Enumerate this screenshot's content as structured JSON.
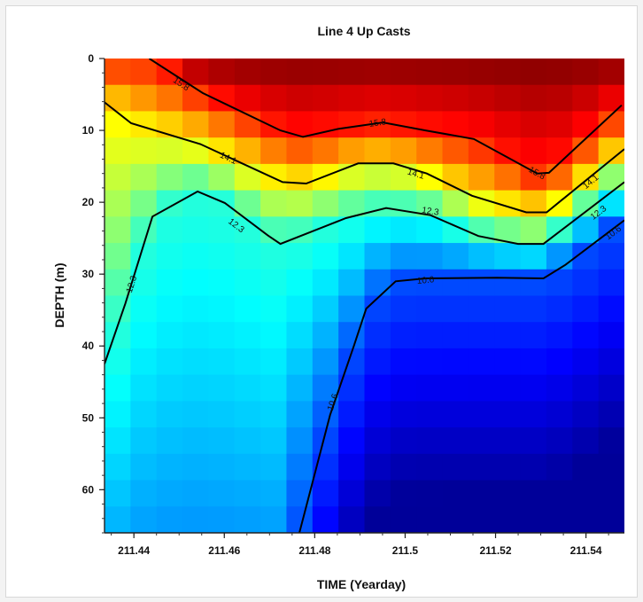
{
  "chart_data": {
    "type": "heatmap",
    "title": "Line 4 Up Casts",
    "xlabel": "TIME (Yearday)",
    "ylabel": "DEPTH (m)",
    "xlim": [
      211.4335,
      211.5485
    ],
    "ylim": [
      66,
      0
    ],
    "x_ticks": [
      "211.44",
      "211.46",
      "211.48",
      "211.5",
      "211.52",
      "211.54"
    ],
    "x_tick_values": [
      211.44,
      211.46,
      211.48,
      211.5,
      211.52,
      211.54
    ],
    "y_ticks": [
      "0",
      "10",
      "20",
      "30",
      "40",
      "50",
      "60"
    ],
    "y_tick_values": [
      0,
      10,
      20,
      30,
      40,
      50,
      60
    ],
    "colormap": "jet",
    "color_range": [
      9.0,
      17.0
    ],
    "contours": [
      {
        "label": "15.8",
        "value": 15.8,
        "points": [
          [
            211.4434,
            0.0
          ],
          [
            211.4552,
            4.8
          ],
          [
            211.4724,
            10.0
          ],
          [
            211.4774,
            10.9
          ],
          [
            211.4852,
            9.8
          ],
          [
            211.4951,
            8.9
          ],
          [
            211.5045,
            10.0
          ],
          [
            211.5152,
            11.2
          ],
          [
            211.5292,
            16.0
          ],
          [
            211.5318,
            15.9
          ],
          [
            211.5479,
            6.5
          ]
        ],
        "label_at": [
          [
            211.4505,
            3.5
          ],
          [
            211.4939,
            8.9
          ],
          [
            211.5292,
            15.9
          ]
        ]
      },
      {
        "label": "14.1",
        "value": 14.1,
        "points": [
          [
            211.4335,
            6.1
          ],
          [
            211.4394,
            9.0
          ],
          [
            211.4547,
            11.9
          ],
          [
            211.4729,
            17.2
          ],
          [
            211.4781,
            17.4
          ],
          [
            211.4896,
            14.6
          ],
          [
            211.4974,
            14.6
          ],
          [
            211.5048,
            16.0
          ],
          [
            211.5148,
            19.1
          ],
          [
            211.5268,
            21.4
          ],
          [
            211.5313,
            21.4
          ],
          [
            211.5485,
            12.6
          ]
        ],
        "label_at": [
          [
            211.4609,
            13.8
          ],
          [
            211.5024,
            16.0
          ],
          [
            211.541,
            17.1
          ]
        ]
      },
      {
        "label": "12.3",
        "value": 12.3,
        "points": [
          [
            211.4335,
            42.5
          ],
          [
            211.4381,
            34.1
          ],
          [
            211.4441,
            22.0
          ],
          [
            211.4541,
            18.5
          ],
          [
            211.4601,
            20.1
          ],
          [
            211.4696,
            24.6
          ],
          [
            211.4724,
            25.8
          ],
          [
            211.4869,
            22.2
          ],
          [
            211.4958,
            20.8
          ],
          [
            211.5056,
            21.8
          ],
          [
            211.5162,
            24.7
          ],
          [
            211.525,
            25.8
          ],
          [
            211.5306,
            25.8
          ],
          [
            211.5485,
            17.2
          ]
        ],
        "label_at": [
          [
            211.4394,
            31.4
          ],
          [
            211.4627,
            23.2
          ],
          [
            211.5056,
            21.2
          ],
          [
            211.5427,
            21.4
          ]
        ]
      },
      {
        "label": "10.6",
        "value": 10.6,
        "points": [
          [
            211.4766,
            66.0
          ],
          [
            211.4834,
            49.6
          ],
          [
            211.4887,
            39.9
          ],
          [
            211.4914,
            34.8
          ],
          [
            211.4979,
            31.0
          ],
          [
            211.5045,
            30.6
          ],
          [
            211.5203,
            30.5
          ],
          [
            211.5306,
            30.6
          ],
          [
            211.5355,
            28.7
          ],
          [
            211.5485,
            22.5
          ]
        ],
        "label_at": [
          [
            211.4839,
            47.8
          ],
          [
            211.5045,
            30.8
          ],
          [
            211.546,
            24.2
          ]
        ]
      }
    ]
  }
}
